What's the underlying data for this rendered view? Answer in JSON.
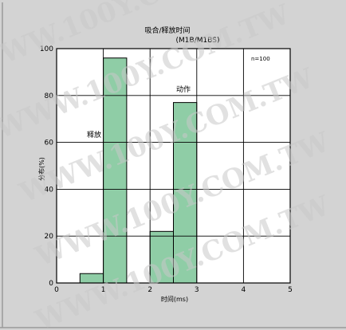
{
  "watermark": "WWW.100Y.COM.TW",
  "chart_data": {
    "type": "bar",
    "title": "吸合/释放时间",
    "subtitle": "(M1B/M1BS)",
    "xlabel": "时间(ms)",
    "ylabel": "分布(%)",
    "xlim": [
      0,
      5
    ],
    "ylim": [
      0,
      100
    ],
    "xticks": [
      0,
      1,
      2,
      3,
      4,
      5
    ],
    "yticks": [
      0,
      20,
      40,
      60,
      80,
      100
    ],
    "grid": true,
    "annotation": "n=100",
    "series": [
      {
        "name": "释放",
        "bins": [
          {
            "x0": 0.5,
            "x1": 1.0,
            "value": 4
          },
          {
            "x0": 1.0,
            "x1": 1.5,
            "value": 96
          }
        ]
      },
      {
        "name": "动作",
        "bins": [
          {
            "x0": 2.0,
            "x1": 2.5,
            "value": 22
          },
          {
            "x0": 2.5,
            "x1": 3.0,
            "value": 77
          }
        ]
      }
    ],
    "bar_color": "#8fcda6",
    "plot_background": "#ffffff"
  }
}
